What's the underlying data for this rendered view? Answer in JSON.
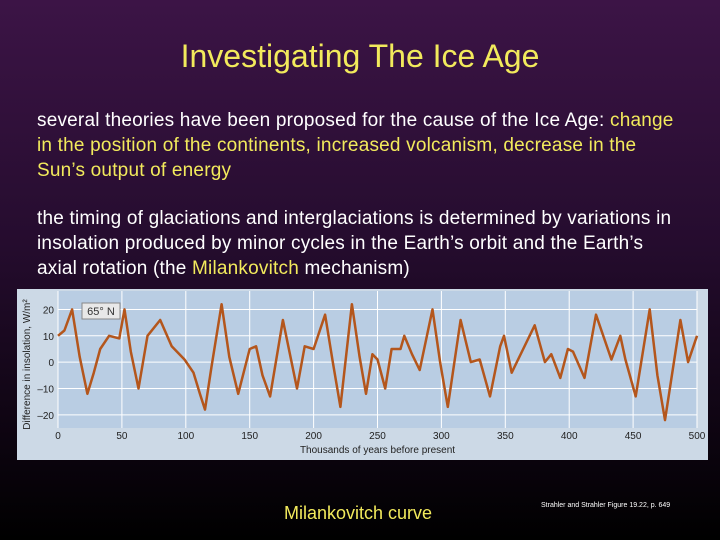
{
  "title": "Investigating The Ice Age",
  "paragraphs": [
    [
      "several theories have been proposed for the cause of the Ice Age: ",
      "change in the position of the continents, increased volcanism, decrease in the Sun’s output of energy"
    ],
    [
      "the timing of glaciations and interglaciations is determined by variations in insolation produced by minor cycles in the Earth’s orbit and the Earth’s axial rotation (the ",
      "Milankovitch",
      " mechanism)"
    ]
  ],
  "caption": "Milankovitch curve",
  "citation": "Strahler and Strahler Figure 19.22, p. 649",
  "chart_data": {
    "type": "line",
    "annotation": "65° N",
    "x_label": "Thousands of years before present",
    "y_label": "Difference in insolation, W/m²",
    "x": [
      0,
      5,
      11,
      17,
      23,
      28,
      33,
      40,
      48,
      52,
      57,
      63,
      70,
      80,
      89,
      99,
      106,
      111,
      115,
      120,
      128,
      134,
      141,
      150,
      155,
      160,
      166,
      176,
      187,
      193,
      200,
      209,
      215,
      221,
      230,
      236,
      241,
      246,
      250,
      256,
      261,
      268,
      271,
      277,
      283,
      293,
      299,
      305,
      315,
      323,
      330,
      338,
      346,
      349,
      355,
      364,
      373,
      381,
      386,
      393,
      399,
      403,
      412,
      421,
      433,
      440,
      444,
      452,
      463,
      469,
      475,
      487,
      493,
      500
    ],
    "series": [
      {
        "name": "65° N",
        "color": "#b4561c",
        "values": [
          10,
          12,
          20,
          2,
          -12,
          -4,
          5,
          10,
          9,
          20,
          4,
          -10,
          10,
          16,
          6,
          1,
          -4,
          -12,
          -18,
          -2,
          22,
          2,
          -12,
          5,
          6,
          -5,
          -13,
          16,
          -10,
          6,
          5,
          18,
          0,
          -17,
          22,
          2,
          -12,
          3,
          1,
          -10,
          5,
          5,
          10,
          3,
          -3,
          20,
          0,
          -17,
          16,
          0,
          1,
          -13,
          6,
          10,
          -4,
          5,
          14,
          0,
          3,
          -6,
          5,
          4,
          -6,
          18,
          1,
          10,
          1,
          -13,
          20,
          -5,
          -22,
          16,
          0,
          10
        ]
      }
    ],
    "xlim": [
      0,
      500
    ],
    "xticks": [
      0,
      50,
      100,
      150,
      200,
      250,
      300,
      350,
      400,
      450,
      500
    ],
    "ylim": [
      -25,
      27
    ],
    "yticks": [
      {
        "value": 20,
        "label": "20"
      },
      {
        "value": 10,
        "label": "10"
      },
      {
        "value": 0,
        "label": "0"
      },
      {
        "value": -10,
        "label": "–10"
      },
      {
        "value": -20,
        "label": "–20"
      }
    ],
    "grid": true
  }
}
